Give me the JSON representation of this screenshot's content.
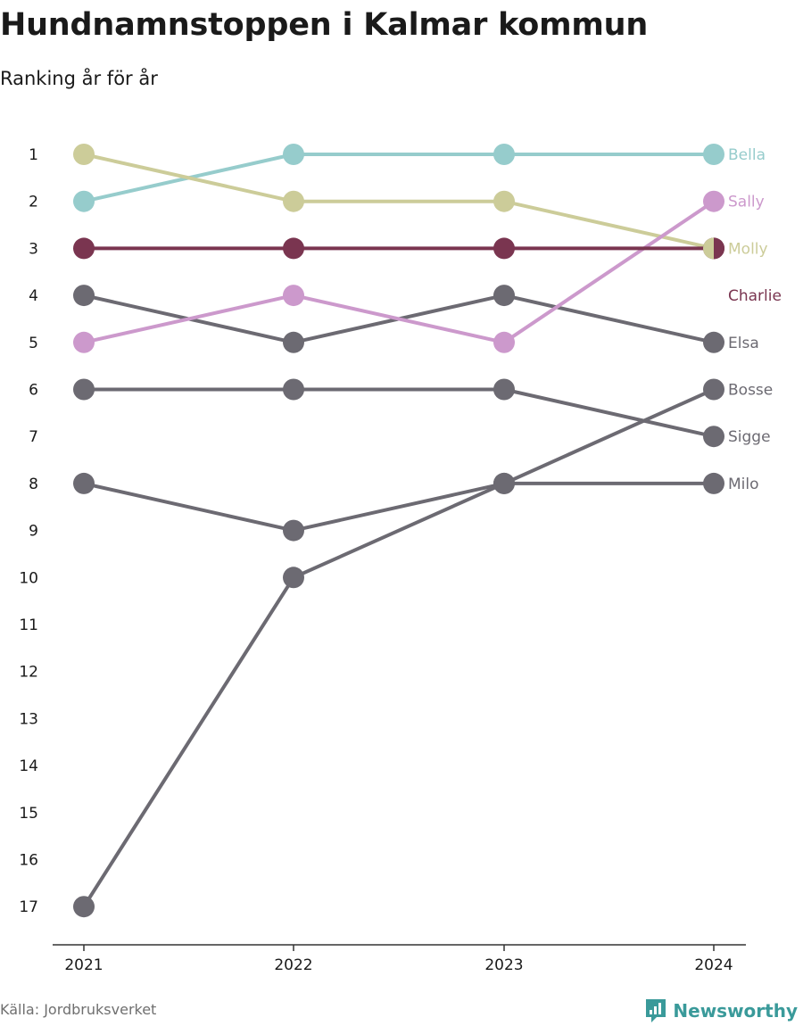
{
  "title": "Hundnamnstoppen i Kalmar kommun",
  "subtitle": "Ranking år för år",
  "source": "Källa: Jordbruksverket",
  "brand": "Newsworthy",
  "colors": {
    "Bella": "#96cccc",
    "Molly": "#cccc99",
    "Sally": "#cc99cc",
    "Charlie": "#7a3550",
    "grey": "#6c6a72",
    "axis": "#333333",
    "brand": "#3a9a9a"
  },
  "chart_data": {
    "type": "line",
    "subtype": "bump",
    "x": [
      "2021",
      "2022",
      "2023",
      "2024"
    ],
    "y_ticks": [
      "1",
      "2",
      "3",
      "4",
      "5",
      "6",
      "7",
      "8",
      "9",
      "10",
      "11",
      "12",
      "13",
      "14",
      "15",
      "16",
      "17"
    ],
    "y_inverted": true,
    "series": [
      {
        "name": "Bella",
        "values": [
          2,
          1,
          1,
          1
        ],
        "color": "#96cccc"
      },
      {
        "name": "Sally",
        "values": [
          5,
          4,
          5,
          2
        ],
        "color": "#cc99cc"
      },
      {
        "name": "Molly",
        "values": [
          1,
          2,
          2,
          3
        ],
        "color": "#cccc99"
      },
      {
        "name": "Charlie",
        "values": [
          3,
          3,
          3,
          3
        ],
        "color": "#7a3550"
      },
      {
        "name": "Elsa",
        "values": [
          4,
          5,
          4,
          5
        ],
        "color": "#6c6a72"
      },
      {
        "name": "Bosse",
        "values": [
          17,
          10,
          8,
          6
        ],
        "color": "#6c6a72"
      },
      {
        "name": "Sigge",
        "values": [
          6,
          6,
          6,
          7
        ],
        "color": "#6c6a72"
      },
      {
        "name": "Milo",
        "values": [
          8,
          9,
          8,
          8
        ],
        "color": "#6c6a72"
      }
    ]
  }
}
